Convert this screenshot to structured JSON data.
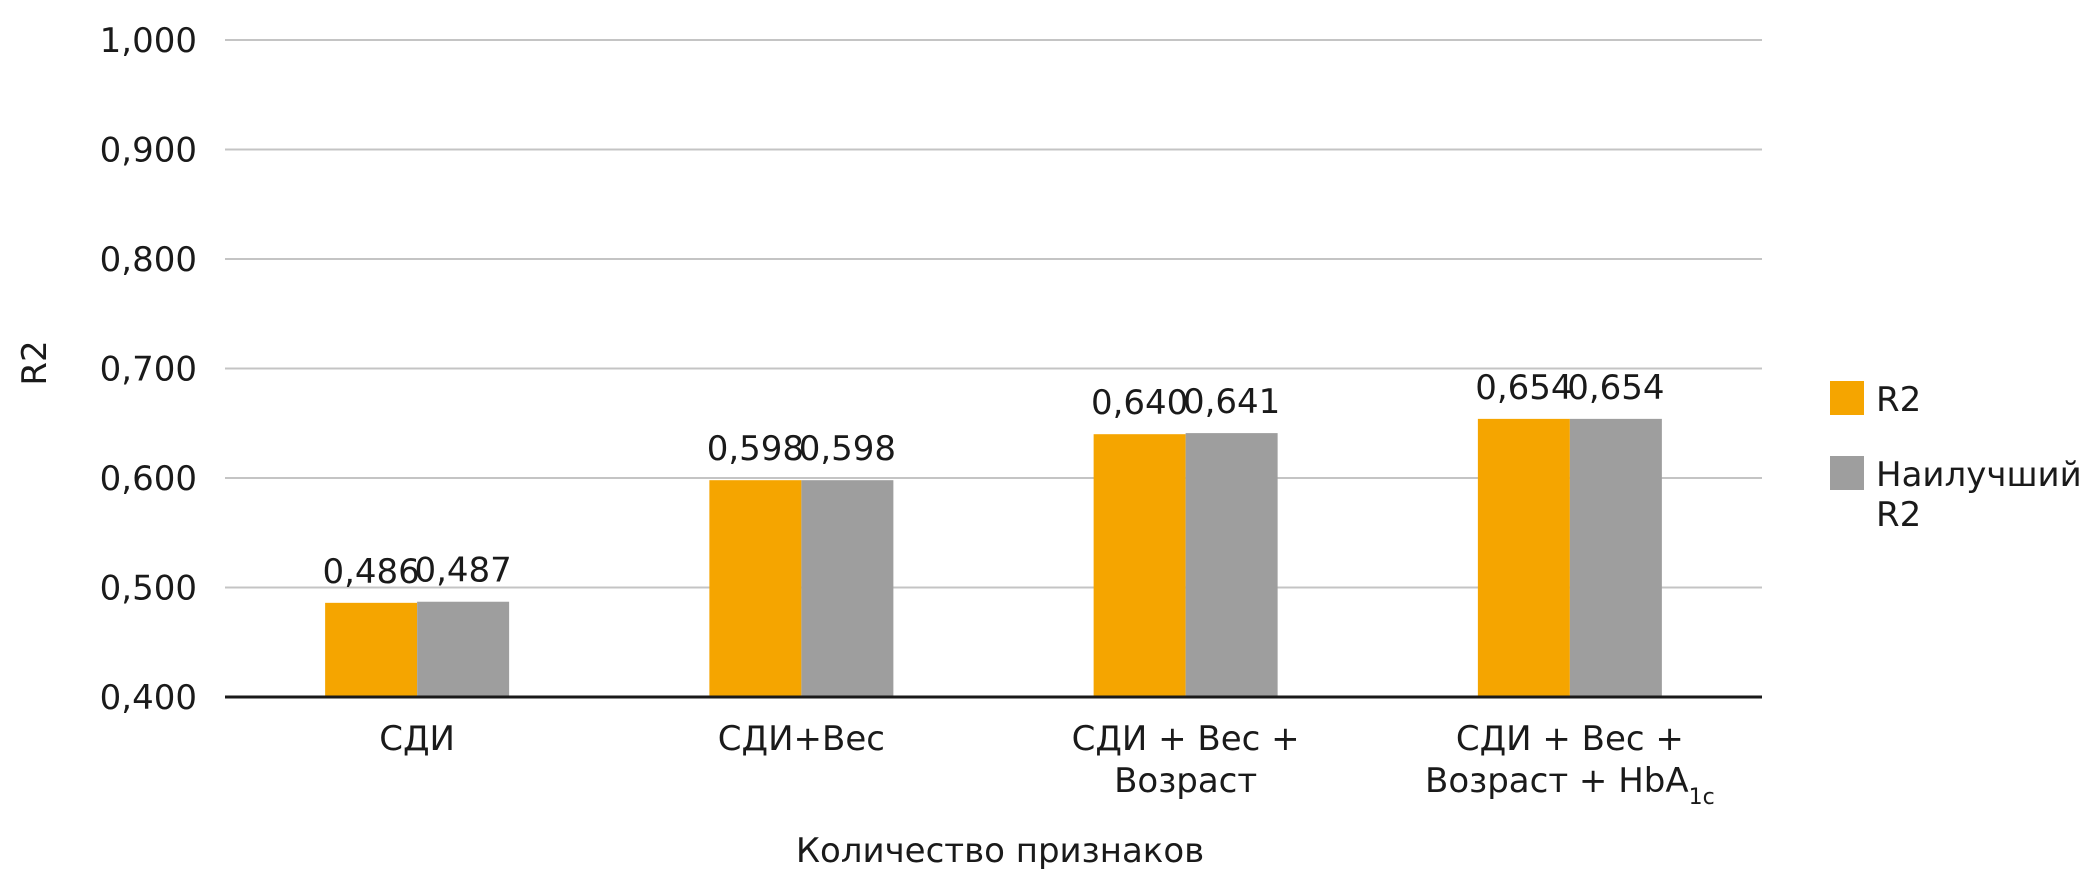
{
  "chart_data": {
    "type": "bar",
    "xlabel": "Количество признаков",
    "ylabel": "R2",
    "ylim": [
      0.4,
      1.0
    ],
    "yticks": [
      "0,400",
      "0,500",
      "0,600",
      "0,700",
      "0,800",
      "0,900",
      "1,000"
    ],
    "ytick_values": [
      0.4,
      0.5,
      0.6,
      0.7,
      0.8,
      0.9,
      1.0
    ],
    "grid": true,
    "legend_position": "right",
    "categories": [
      {
        "lines": [
          {
            "text": "СДИ"
          }
        ]
      },
      {
        "lines": [
          {
            "text": "СДИ+Вес"
          }
        ]
      },
      {
        "lines": [
          {
            "text": "СДИ + Вес +"
          },
          {
            "text": "Возраст"
          }
        ]
      },
      {
        "lines": [
          {
            "text": "СДИ + Вес +"
          },
          {
            "text": "Возраст + HbA",
            "sub": "1c"
          }
        ]
      }
    ],
    "series": [
      {
        "name_lines": [
          "R2"
        ],
        "color": "#F5A500",
        "values": [
          0.486,
          0.598,
          0.64,
          0.654
        ],
        "labels": [
          "0,486",
          "0,598",
          "0,640",
          "0,654"
        ]
      },
      {
        "name_lines": [
          "Наилучший",
          "R2"
        ],
        "color": "#9E9E9E",
        "values": [
          0.487,
          0.598,
          0.641,
          0.654
        ],
        "labels": [
          "0,487",
          "0,598",
          "0,641",
          "0,654"
        ]
      }
    ]
  }
}
